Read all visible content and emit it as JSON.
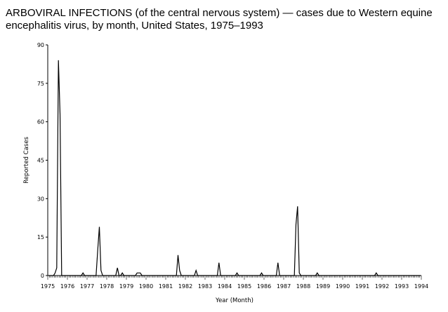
{
  "chart_data": {
    "type": "line",
    "title": "ARBOVIRAL INFECTIONS (of the central nervous system) — cases due to Western equine encephalitis virus, by month, United States, 1975–1993",
    "xlabel": "Year (Month)",
    "ylabel": "Reported Cases",
    "ylim": [
      0,
      90
    ],
    "yticks": [
      "0",
      "15",
      "30",
      "45",
      "60",
      "75",
      "90"
    ],
    "xlim": [
      1975,
      1994
    ],
    "xticks": [
      "1975",
      "1976",
      "1977",
      "1978",
      "1979",
      "1980",
      "1981",
      "1982",
      "1983",
      "1984",
      "1985",
      "1986",
      "1987",
      "1988",
      "1989",
      "1990",
      "1991",
      "1992",
      "1993",
      "1994"
    ],
    "grid": false,
    "series_by_year_monthly": {
      "1975": [
        0,
        0,
        0,
        0,
        1,
        3,
        84,
        63,
        0,
        0,
        0,
        0
      ],
      "1976": [
        0,
        0,
        0,
        0,
        0,
        0,
        0,
        0,
        0,
        1,
        0,
        0
      ],
      "1977": [
        0,
        0,
        0,
        0,
        0,
        0,
        10,
        19,
        2,
        0,
        0,
        0
      ],
      "1978": [
        0,
        0,
        0,
        0,
        0,
        0,
        3,
        0,
        0,
        1,
        0,
        0
      ],
      "1979": [
        0,
        0,
        0,
        0,
        0,
        0,
        1,
        1,
        1,
        0,
        0,
        0
      ],
      "1980": [
        0,
        0,
        0,
        0,
        0,
        0,
        0,
        0,
        0,
        0,
        0,
        0
      ],
      "1981": [
        0,
        0,
        0,
        0,
        0,
        0,
        0,
        8,
        2,
        0,
        0,
        0
      ],
      "1982": [
        0,
        0,
        0,
        0,
        0,
        0,
        2,
        0,
        0,
        0,
        0,
        0
      ],
      "1983": [
        0,
        0,
        0,
        0,
        0,
        0,
        0,
        0,
        5,
        0,
        0,
        0
      ],
      "1984": [
        0,
        0,
        0,
        0,
        0,
        0,
        0,
        1,
        0,
        0,
        0,
        0
      ],
      "1985": [
        0,
        0,
        0,
        0,
        0,
        0,
        0,
        0,
        0,
        0,
        1,
        0
      ],
      "1986": [
        0,
        0,
        0,
        0,
        0,
        0,
        0,
        0,
        5,
        0,
        0,
        0
      ],
      "1987": [
        0,
        0,
        0,
        0,
        0,
        0,
        0,
        20,
        27,
        1,
        0,
        0
      ],
      "1988": [
        0,
        0,
        0,
        0,
        0,
        0,
        0,
        0,
        1,
        0,
        0,
        0
      ],
      "1989": [
        0,
        0,
        0,
        0,
        0,
        0,
        0,
        0,
        0,
        0,
        0,
        0
      ],
      "1990": [
        0,
        0,
        0,
        0,
        0,
        0,
        0,
        0,
        0,
        0,
        0,
        0
      ],
      "1991": [
        0,
        0,
        0,
        0,
        0,
        0,
        0,
        0,
        1,
        0,
        0,
        0
      ],
      "1992": [
        0,
        0,
        0,
        0,
        0,
        0,
        0,
        0,
        0,
        0,
        0,
        0
      ],
      "1993": [
        0,
        0,
        0,
        0,
        0,
        0,
        0,
        0,
        0,
        0,
        0,
        0
      ]
    }
  }
}
